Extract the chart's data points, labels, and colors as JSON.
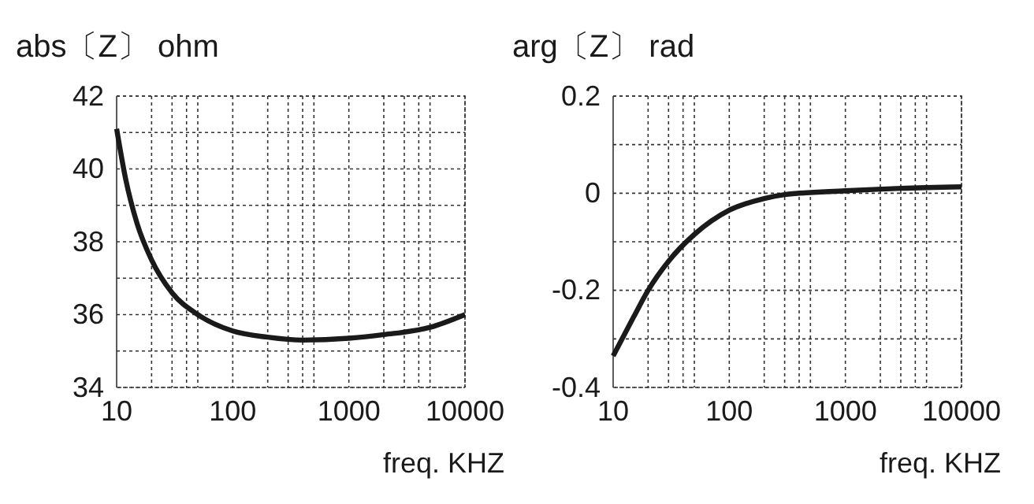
{
  "chart_data": [
    {
      "type": "line",
      "title": "abs〔Z〕 ohm",
      "xlabel": "freq.  KHZ",
      "log": "x",
      "grid": true,
      "line_style": "solid",
      "marker": "none",
      "x": [
        10,
        12,
        15,
        20,
        30,
        50,
        100,
        200,
        400,
        1000,
        2000,
        5000,
        10000
      ],
      "series": [
        {
          "color": "#1a1a1a",
          "values": [
            41.1,
            39.7,
            38.5,
            37.5,
            36.6,
            36.0,
            35.55,
            35.38,
            35.3,
            35.35,
            35.45,
            35.65,
            36.0
          ]
        }
      ],
      "xlim": [
        10,
        10000
      ],
      "ylim": [
        34,
        42
      ],
      "xticks": [
        10,
        {
          "value": 20,
          "label": null
        },
        {
          "value": 30,
          "label": null
        },
        {
          "value": 40,
          "label": null
        },
        {
          "value": 50,
          "label": null
        },
        100,
        {
          "value": 200,
          "label": null
        },
        {
          "value": 300,
          "label": null
        },
        {
          "value": 400,
          "label": null
        },
        {
          "value": 500,
          "label": null
        },
        1000,
        {
          "value": 2000,
          "label": null
        },
        {
          "value": 3000,
          "label": null
        },
        {
          "value": 4000,
          "label": null
        },
        {
          "value": 5000,
          "label": null
        },
        10000
      ],
      "yticks": [
        34,
        {
          "value": 35,
          "label": null
        },
        36,
        {
          "value": 37,
          "label": null
        },
        38,
        {
          "value": 39,
          "label": null
        },
        40,
        {
          "value": 41,
          "label": null
        },
        42
      ]
    },
    {
      "type": "line",
      "title": "arg〔Z〕 rad",
      "xlabel": "freq.  KHZ",
      "log": "x",
      "grid": true,
      "line_style": "solid",
      "marker": "none",
      "x": [
        10,
        15,
        20,
        30,
        50,
        100,
        200,
        300,
        1000,
        3000,
        10000
      ],
      "series": [
        {
          "color": "#1a1a1a",
          "values": [
            -0.335,
            -0.255,
            -0.2,
            -0.14,
            -0.085,
            -0.035,
            -0.011,
            -0.003,
            0.005,
            0.01,
            0.013
          ]
        }
      ],
      "xlim": [
        10,
        10000
      ],
      "ylim": [
        -0.4,
        0.2
      ],
      "xticks": [
        10,
        {
          "value": 20,
          "label": null
        },
        {
          "value": 30,
          "label": null
        },
        {
          "value": 40,
          "label": null
        },
        {
          "value": 50,
          "label": null
        },
        100,
        {
          "value": 200,
          "label": null
        },
        {
          "value": 300,
          "label": null
        },
        {
          "value": 400,
          "label": null
        },
        {
          "value": 500,
          "label": null
        },
        1000,
        {
          "value": 2000,
          "label": null
        },
        {
          "value": 3000,
          "label": null
        },
        {
          "value": 4000,
          "label": null
        },
        {
          "value": 5000,
          "label": null
        },
        10000
      ],
      "yticks": [
        -0.4,
        {
          "value": -0.3,
          "label": null
        },
        -0.2,
        {
          "value": -0.1,
          "label": null
        },
        0,
        {
          "value": 0.1,
          "label": null
        },
        0.2
      ]
    }
  ]
}
